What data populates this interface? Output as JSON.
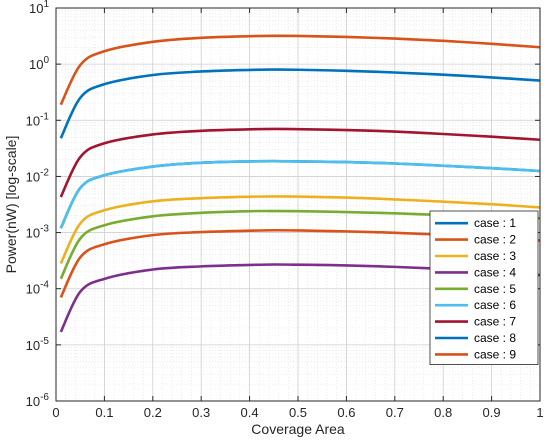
{
  "chart_data": {
    "type": "line",
    "xlabel": "Coverage Area",
    "ylabel": "Power(nW) [log-scale]",
    "xlim": [
      0,
      1
    ],
    "ylim": [
      1e-06,
      10
    ],
    "yscale": "log",
    "grid": true,
    "legend_position": "bottom-right",
    "x_ticks": [
      0,
      0.1,
      0.2,
      0.3,
      0.4,
      0.5,
      0.6,
      0.7,
      0.8,
      0.9,
      1
    ],
    "x_tick_labels": [
      "0",
      "0.1",
      "0.2",
      "0.3",
      "0.4",
      "0.5",
      "0.6",
      "0.7",
      "0.8",
      "0.9",
      "1"
    ],
    "y_ticks": [
      {
        "value": 10,
        "base": "10",
        "exp": "1"
      },
      {
        "value": 1,
        "base": "10",
        "exp": "0"
      },
      {
        "value": 0.1,
        "base": "10",
        "exp": "-1"
      },
      {
        "value": 0.01,
        "base": "10",
        "exp": "-2"
      },
      {
        "value": 0.001,
        "base": "10",
        "exp": "-3"
      },
      {
        "value": 0.0001,
        "base": "10",
        "exp": "-4"
      },
      {
        "value": 1e-05,
        "base": "10",
        "exp": "-5"
      },
      {
        "value": 1e-06,
        "base": "10",
        "exp": "-6"
      }
    ],
    "x": [
      0.01,
      0.05,
      0.1,
      0.2,
      0.3,
      0.4,
      0.45,
      0.5,
      0.6,
      0.7,
      0.8,
      0.9,
      1.0
    ],
    "series": [
      {
        "name": "case : 1",
        "color": "#0072BD",
        "values": [
          0.0012,
          0.0062,
          0.0105,
          0.015,
          0.0175,
          0.0185,
          0.0187,
          0.0185,
          0.018,
          0.017,
          0.0155,
          0.014,
          0.0125
        ]
      },
      {
        "name": "case : 2",
        "color": "#D95319",
        "values": [
          7e-05,
          0.00036,
          0.00062,
          0.0009,
          0.00102,
          0.00108,
          0.0011,
          0.00109,
          0.00105,
          0.00099,
          0.00091,
          0.00082,
          0.00072
        ]
      },
      {
        "name": "case : 3",
        "color": "#EDB120",
        "values": [
          0.00028,
          0.00145,
          0.0025,
          0.0036,
          0.0041,
          0.00435,
          0.0044,
          0.00437,
          0.0042,
          0.0039,
          0.00355,
          0.0032,
          0.0028
        ]
      },
      {
        "name": "case : 4",
        "color": "#7E2F8E",
        "values": [
          1.7e-05,
          8.8e-05,
          0.00015,
          0.00022,
          0.00025,
          0.000265,
          0.00027,
          0.000268,
          0.00026,
          0.000245,
          0.000225,
          0.0002,
          0.000175
        ]
      },
      {
        "name": "case : 5",
        "color": "#77AC30",
        "values": [
          0.00015,
          0.00078,
          0.00135,
          0.00195,
          0.00225,
          0.0024,
          0.00242,
          0.0024,
          0.00232,
          0.0022,
          0.00205,
          0.0019,
          0.0018
        ]
      },
      {
        "name": "case : 6",
        "color": "#4DBEEE",
        "values": [
          0.0012,
          0.0062,
          0.0105,
          0.015,
          0.0175,
          0.0185,
          0.0187,
          0.0185,
          0.018,
          0.017,
          0.0155,
          0.014,
          0.0125
        ]
      },
      {
        "name": "case : 7",
        "color": "#A2142F",
        "values": [
          0.0043,
          0.022,
          0.039,
          0.056,
          0.065,
          0.069,
          0.07,
          0.0695,
          0.067,
          0.063,
          0.057,
          0.051,
          0.045
        ]
      },
      {
        "name": "case : 8",
        "color": "#0072BD",
        "values": [
          0.048,
          0.25,
          0.44,
          0.64,
          0.74,
          0.79,
          0.8,
          0.795,
          0.76,
          0.71,
          0.65,
          0.58,
          0.51
        ]
      },
      {
        "name": "case : 9",
        "color": "#D95319",
        "values": [
          0.19,
          0.96,
          1.7,
          2.5,
          2.95,
          3.15,
          3.2,
          3.18,
          3.05,
          2.85,
          2.6,
          2.3,
          2.0
        ]
      }
    ]
  }
}
